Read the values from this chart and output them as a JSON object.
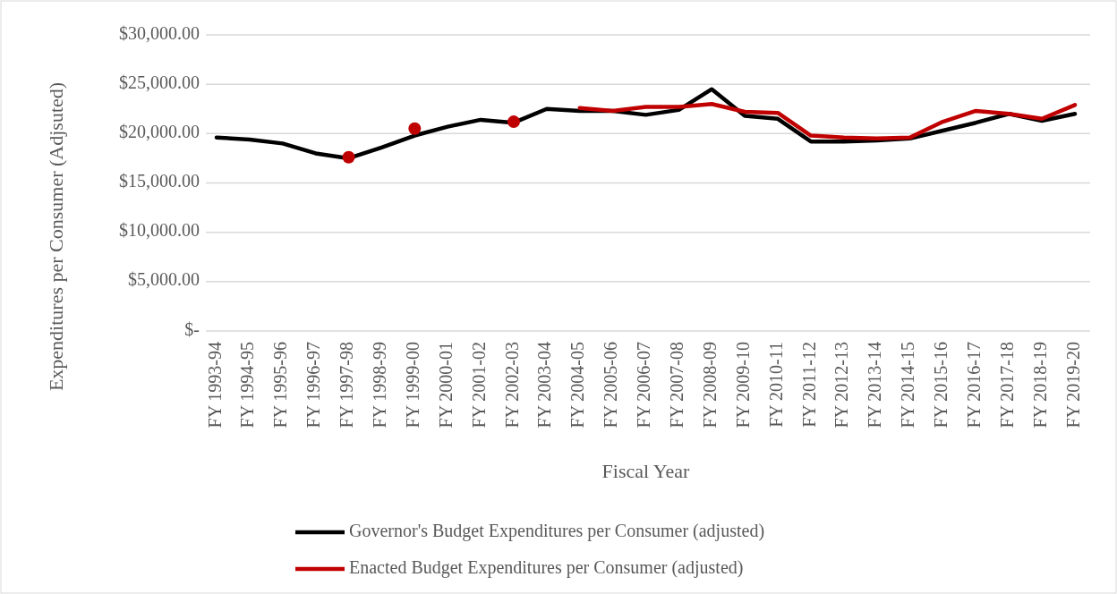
{
  "chart_data": {
    "type": "line",
    "xlabel": "Fiscal Year",
    "ylabel": "Expenditures per Consumer (Adjsuted)",
    "categories": [
      "FY 1993-94",
      "FY 1994-95",
      "FY 1995-96",
      "FY 1996-97",
      "FY 1997-98",
      "FY 1998-99",
      "FY 1999-00",
      "FY 2000-01",
      "FY 2001-02",
      "FY 2002-03",
      "FY 2003-04",
      "FY 2004-05",
      "FY 2005-06",
      "FY 2006-07",
      "FY 2007-08",
      "FY 2008-09",
      "FY 2009-10",
      "FY 2010-11",
      "FY 2011-12",
      "FY 2012-13",
      "FY 2013-14",
      "FY 2014-15",
      "FY 2015-16",
      "FY 2016-17",
      "FY 2017-18",
      "FY 2018-19",
      "FY 2019-20"
    ],
    "series": [
      {
        "name": "Governor's Budget Expenditures per Consumer (adjusted)",
        "color": "#000000",
        "values": [
          19600,
          19400,
          19000,
          18000,
          17500,
          18600,
          19800,
          20700,
          21400,
          21100,
          22500,
          22300,
          22300,
          21900,
          22400,
          24500,
          21800,
          21500,
          19200,
          19200,
          19300,
          19500,
          20300,
          21100,
          22000,
          21300,
          22000
        ]
      },
      {
        "name": "Enacted Budget Expenditures per Consumer (adjusted)",
        "color": "#c00000",
        "values": [
          null,
          null,
          null,
          null,
          17600,
          null,
          20500,
          null,
          null,
          21200,
          null,
          22600,
          22300,
          22700,
          22700,
          23000,
          22200,
          22100,
          19800,
          19600,
          19500,
          19600,
          21200,
          22300,
          22000,
          21500,
          22900
        ]
      }
    ],
    "ylim": [
      0,
      30000
    ],
    "yticks": [
      {
        "value": 0,
        "label": "$-"
      },
      {
        "value": 5000,
        "label": "$5,000.00"
      },
      {
        "value": 10000,
        "label": "$10,000.00"
      },
      {
        "value": 15000,
        "label": "$15,000.00"
      },
      {
        "value": 20000,
        "label": "$20,000.00"
      },
      {
        "value": 25000,
        "label": "$25,000.00"
      },
      {
        "value": 30000,
        "label": "$30,000.00"
      }
    ],
    "grid": "y",
    "legend": "bottom"
  }
}
